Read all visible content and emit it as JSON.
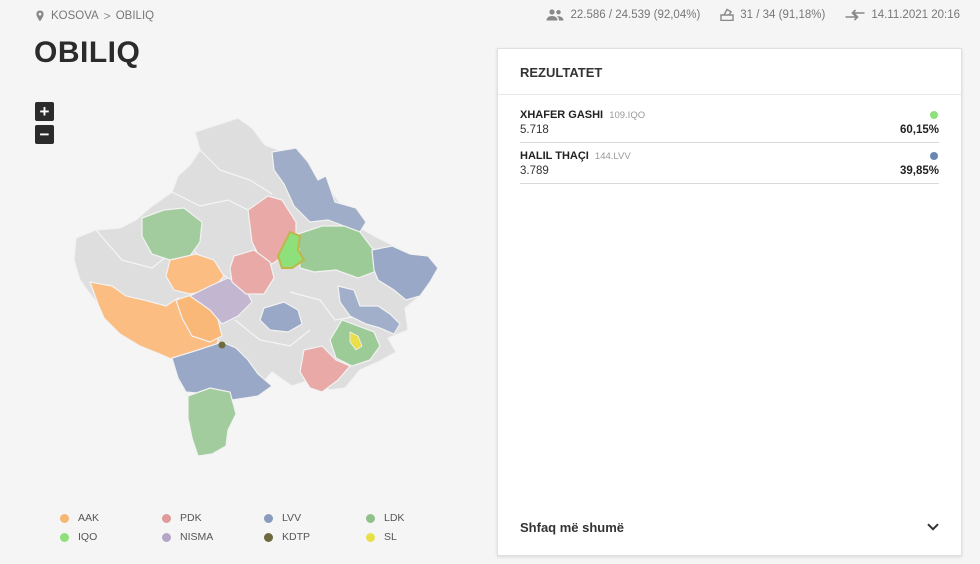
{
  "breadcrumb": {
    "country": "KOSOVA",
    "separator": ">",
    "municipality": "OBILIQ"
  },
  "stats": {
    "voters": "22.586 / 24.539 (92,04%)",
    "stations": "31 / 34 (91,18%)",
    "updated": "14.11.2021 20:16"
  },
  "title": "OBILIQ",
  "zoom": {
    "in": "+",
    "out": "−"
  },
  "legend": [
    {
      "party": "AAK",
      "color": "#f7b774"
    },
    {
      "party": "PDK",
      "color": "#e09a9a"
    },
    {
      "party": "LVV",
      "color": "#8a9bbf"
    },
    {
      "party": "LDK",
      "color": "#8fc18a"
    },
    {
      "party": "IQO",
      "color": "#8ee07a"
    },
    {
      "party": "NISMA",
      "color": "#b5a6c8"
    },
    {
      "party": "KDTP",
      "color": "#6e6a3e"
    },
    {
      "party": "SL",
      "color": "#e8e04a"
    }
  ],
  "results": {
    "heading": "REZULTATET",
    "candidates": [
      {
        "name": "XHAFER GASHI",
        "code": "109.IQO",
        "votes": "5.718",
        "percent": "60,15%",
        "color": "#8ee07a"
      },
      {
        "name": "HALIL THAÇI",
        "code": "144.LVV",
        "votes": "3.789",
        "percent": "39,85%",
        "color": "#6b86b3"
      }
    ],
    "more_label": "Shfaq më shumë"
  }
}
